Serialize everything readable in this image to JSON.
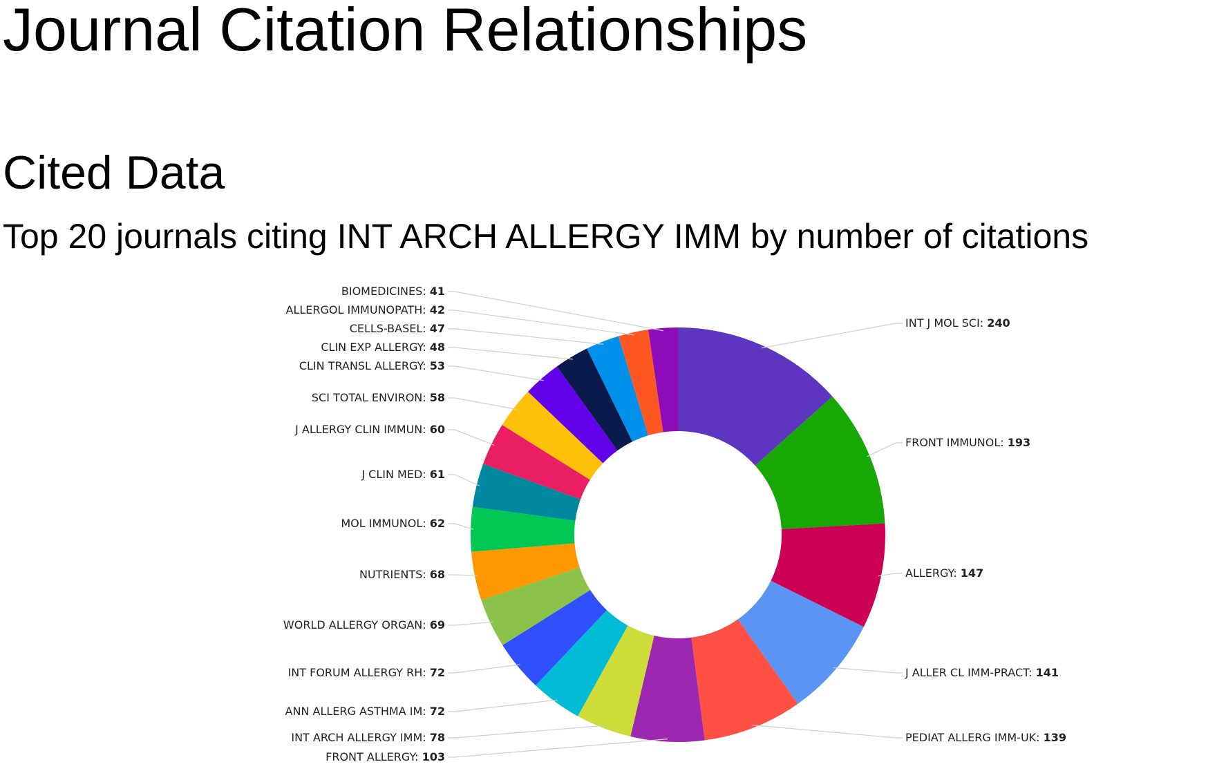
{
  "page": {
    "title": "Journal Citation Relationships",
    "section_title": "Cited Data"
  },
  "chart_data": {
    "type": "pie",
    "donut": true,
    "title": "Top 20 journals citing INT ARCH ALLERGY IMM by number of citations",
    "slices": [
      {
        "label": "INT J MOL SCI",
        "value": 240,
        "color": "#5e35c1"
      },
      {
        "label": "FRONT IMMUNOL",
        "value": 193,
        "color": "#17a805"
      },
      {
        "label": "ALLERGY",
        "value": 147,
        "color": "#cc0055"
      },
      {
        "label": "J ALLER CL IMM-PRACT",
        "value": 141,
        "color": "#5a95f5"
      },
      {
        "label": "PEDIAT ALLERG IMM-UK",
        "value": 139,
        "color": "#ff5043"
      },
      {
        "label": "FRONT ALLERGY",
        "value": 103,
        "color": "#9c27b0"
      },
      {
        "label": "INT ARCH ALLERGY IMM",
        "value": 78,
        "color": "#cddc39"
      },
      {
        "label": "ANN ALLERG ASTHMA IM",
        "value": 72,
        "color": "#00bcd4"
      },
      {
        "label": "INT FORUM ALLERGY RH",
        "value": 72,
        "color": "#304ffe"
      },
      {
        "label": "WORLD ALLERGY ORGAN",
        "value": 69,
        "color": "#8bc34a"
      },
      {
        "label": "NUTRIENTS",
        "value": 68,
        "color": "#ff9800"
      },
      {
        "label": "MOL IMMUNOL",
        "value": 62,
        "color": "#00c853"
      },
      {
        "label": "J CLIN MED",
        "value": 61,
        "color": "#00899e"
      },
      {
        "label": "J ALLERGY CLIN IMMUN",
        "value": 60,
        "color": "#e91e63"
      },
      {
        "label": "SCI TOTAL ENVIRON",
        "value": 58,
        "color": "#ffc107"
      },
      {
        "label": "CLIN TRANSL ALLERGY",
        "value": 53,
        "color": "#6200ea"
      },
      {
        "label": "CLIN EXP ALLERGY",
        "value": 48,
        "color": "#0a1a4a"
      },
      {
        "label": "CELLS-BASEL",
        "value": 47,
        "color": "#0091ea"
      },
      {
        "label": "ALLERGOL IMMUNOPATH",
        "value": 42,
        "color": "#ff5722"
      },
      {
        "label": "BIOMEDICINES",
        "value": 41,
        "color": "#8e0cb8"
      }
    ]
  }
}
